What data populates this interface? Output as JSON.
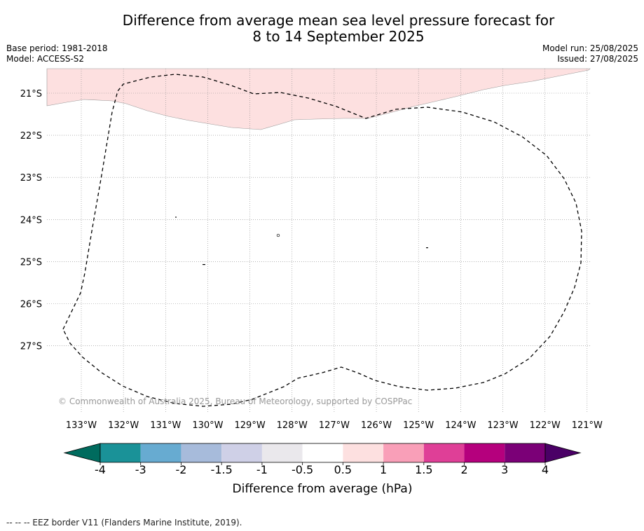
{
  "title": {
    "line1": "Difference from average mean sea level pressure forecast for",
    "line2": "8 to 14 September 2025"
  },
  "meta": {
    "base_period": "Base period: 1981-2018",
    "model": "Model: ACCESS-S2",
    "model_run": "Model run: 25/08/2025",
    "issued": "Issued: 27/08/2025"
  },
  "map": {
    "lat_labels": [
      "21°S",
      "22°S",
      "23°S",
      "24°S",
      "25°S",
      "26°S",
      "27°S"
    ],
    "lon_labels": [
      "133°W",
      "132°W",
      "131°W",
      "130°W",
      "129°W",
      "128°W",
      "127°W",
      "126°W",
      "125°W",
      "124°W",
      "123°W",
      "122°W",
      "121°W"
    ],
    "anomaly_region_value": "0.5 to 1",
    "anomaly_color": "#fde0e0",
    "copyright": "© Commonwealth of Australia 2025, Bureau of Meteorology, supported by COSPPac"
  },
  "colorbar": {
    "ticks": [
      "-4",
      "-3",
      "-2",
      "-1.5",
      "-1",
      "-0.5",
      "0.5",
      "1",
      "1.5",
      "2",
      "3",
      "4"
    ],
    "colors": [
      "#1a9298",
      "#67abd1",
      "#a7bbdb",
      "#cfd0e7",
      "#eae8ec",
      "#ffffff",
      "#fde0e0",
      "#f99fb8",
      "#df3f97",
      "#b5007d",
      "#7b0077"
    ],
    "under_color": "#006b5e",
    "over_color": "#4a0066",
    "label": "Difference from average (hPa)"
  },
  "legend": {
    "eez": "--  --  -- EEZ border V11 (Flanders Marine Institute, 2019)."
  }
}
